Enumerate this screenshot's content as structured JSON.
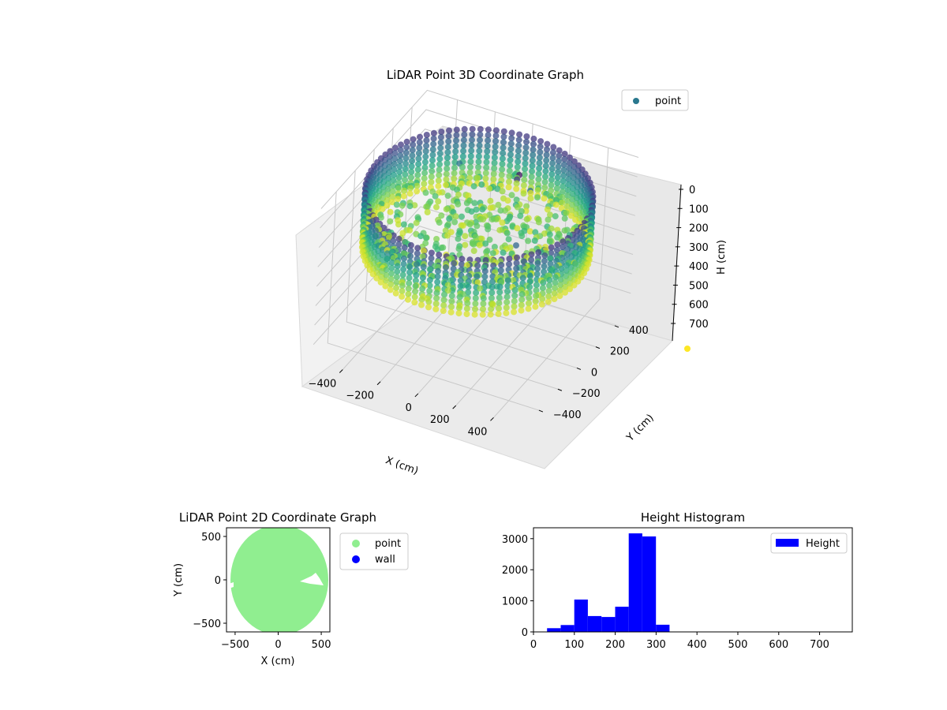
{
  "chart_data": [
    {
      "type": "scatter",
      "projection": "3d",
      "title": "LiDAR Point 3D Coordinate Graph",
      "xlabel": "X (cm)",
      "ylabel": "Y (cm)",
      "zlabel": "H (cm)",
      "xticks": [
        -400,
        -200,
        0,
        200,
        400
      ],
      "yticks": [
        -400,
        -200,
        0,
        200,
        400
      ],
      "zticks": [
        0,
        100,
        200,
        300,
        400,
        500,
        600,
        700
      ],
      "xlim": [
        -560,
        560
      ],
      "ylim": [
        -560,
        560
      ],
      "zlim": [
        0,
        780
      ],
      "z_axis_inverted": true,
      "colormap": "viridis",
      "grid": true,
      "legend": {
        "placement": "top-right",
        "entries": [
          {
            "label": "point",
            "color": "#2a788e"
          }
        ]
      },
      "series": [
        {
          "name": "point",
          "description_points": {
            "wall_ring": {
              "radius": 540,
              "h_range": [
                250,
                330
              ],
              "count_angles": 90
            },
            "interior_samples": [
              {
                "x": -200,
                "y": 200,
                "h": 280
              },
              {
                "x": -100,
                "y": 100,
                "h": 290
              },
              {
                "x": 0,
                "y": 0,
                "h": 300
              },
              {
                "x": 100,
                "y": -100,
                "h": 270
              },
              {
                "x": 200,
                "y": 100,
                "h": 240
              },
              {
                "x": -300,
                "y": -100,
                "h": 260
              },
              {
                "x": 300,
                "y": -200,
                "h": 120
              },
              {
                "x": 150,
                "y": 250,
                "h": 130
              },
              {
                "x": -250,
                "y": 300,
                "h": 140
              },
              {
                "x": 50,
                "y": -300,
                "h": 280
              },
              {
                "x": 100,
                "y": 200,
                "h": 60
              },
              {
                "x": 120,
                "y": 180,
                "h": 20
              }
            ]
          }
        }
      ]
    },
    {
      "type": "scatter",
      "title": "LiDAR Point 2D Coordinate Graph",
      "xlabel": "X (cm)",
      "ylabel": "Y (cm)",
      "xlim": [
        -600,
        600
      ],
      "ylim": [
        -600,
        600
      ],
      "xticks": [
        -500,
        0,
        500
      ],
      "yticks": [
        -500,
        0,
        500
      ],
      "grid": false,
      "legend": {
        "placement": "outside-right",
        "entries": [
          {
            "label": "point",
            "color": "#90ee90"
          },
          {
            "label": "wall",
            "color": "#0000ff"
          }
        ]
      },
      "series": [
        {
          "name": "point",
          "shape": "filled-disc",
          "radius": 560,
          "color": "#90ee90"
        },
        {
          "name": "wall",
          "color": "#0000ff",
          "values": []
        }
      ]
    },
    {
      "type": "bar",
      "subtype": "histogram",
      "title": "Height Histogram",
      "xlim": [
        0,
        780
      ],
      "ylim": [
        0,
        3350
      ],
      "xticks": [
        0,
        100,
        200,
        300,
        400,
        500,
        600,
        700
      ],
      "yticks": [
        0,
        1000,
        2000,
        3000
      ],
      "color": "#0000ff",
      "legend": {
        "placement": "top-right",
        "entries": [
          {
            "label": "Height",
            "color": "#0000ff"
          }
        ]
      },
      "bin_width": 33.3,
      "bins": [
        {
          "x0": 0,
          "x1": 33.3,
          "count": 10
        },
        {
          "x0": 33.3,
          "x1": 66.6,
          "count": 120
        },
        {
          "x0": 66.6,
          "x1": 99.9,
          "count": 220
        },
        {
          "x0": 99.9,
          "x1": 133.2,
          "count": 1040
        },
        {
          "x0": 133.2,
          "x1": 166.5,
          "count": 510
        },
        {
          "x0": 166.5,
          "x1": 199.8,
          "count": 480
        },
        {
          "x0": 199.8,
          "x1": 233.1,
          "count": 810
        },
        {
          "x0": 233.1,
          "x1": 266.4,
          "count": 3170
        },
        {
          "x0": 266.4,
          "x1": 299.7,
          "count": 3070
        },
        {
          "x0": 299.7,
          "x1": 333.0,
          "count": 230
        },
        {
          "x0": 333.0,
          "x1": 366.3,
          "count": 5
        },
        {
          "x0": 366.3,
          "x1": 780,
          "count": 0
        }
      ]
    }
  ]
}
